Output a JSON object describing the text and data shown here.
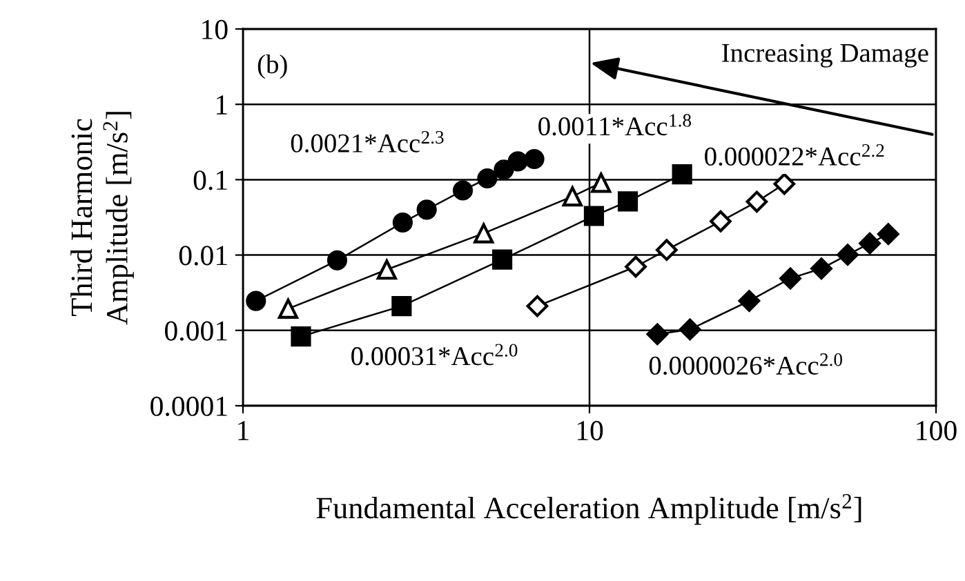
{
  "chart_data": {
    "type": "line",
    "xlabel": "Fundamental Acceleration Amplitude [m/s$^{2}$]",
    "ylabel": "Third Harmonic\nAmplitude [m/s$^{2}$]",
    "log": "xy",
    "xlim": [
      1,
      100
    ],
    "ylim": [
      0.0001,
      10
    ],
    "xticks": [
      1,
      10,
      100
    ],
    "yticks": [
      0.0001,
      0.001,
      0.01,
      0.1,
      1,
      10
    ],
    "grid": true,
    "line_style": "solid",
    "annotations": [
      "(b)",
      "Increasing Damage",
      "0.0021*Acc$^{2.3}$",
      "0.0011*Acc$^{1.8}$",
      "0.000022*Acc$^{2.2}$",
      "0.00031*Acc$^{2.0}$",
      "0.0000026*Acc$^{2.0}$"
    ],
    "series": [
      {
        "color": "#000000",
        "marker": "circle",
        "x": [
          1.09,
          1.87,
          2.89,
          3.39,
          4.31,
          5.07,
          5.66,
          6.21,
          6.93
        ],
        "values": [
          0.00246,
          0.0085,
          0.027,
          0.04,
          0.072,
          0.104,
          0.136,
          0.175,
          0.188
        ]
      },
      {
        "color": "#ffffff",
        "marker": "triangle",
        "x": [
          1.35,
          2.6,
          4.95,
          8.93,
          10.8
        ],
        "values": [
          0.00194,
          0.0064,
          0.0194,
          0.06,
          0.091
        ]
      },
      {
        "color": "#000000",
        "marker": "square",
        "x": [
          1.47,
          2.87,
          5.6,
          10.3,
          12.9,
          18.5
        ],
        "values": [
          0.00083,
          0.0021,
          0.0087,
          0.033,
          0.0515,
          0.118
        ]
      },
      {
        "color": "#ffffff",
        "marker": "diamond",
        "x": [
          7.07,
          13.6,
          16.7,
          23.9,
          30.4,
          36.5
        ],
        "values": [
          0.0021,
          0.007,
          0.0117,
          0.028,
          0.051,
          0.088
        ]
      },
      {
        "color": "#000000",
        "marker": "diamond",
        "x": [
          15.7,
          19.5,
          28.9,
          38.0,
          46.7,
          55.6,
          64.4,
          72.8
        ],
        "values": [
          0.00089,
          0.00103,
          0.00246,
          0.0049,
          0.0066,
          0.0101,
          0.0143,
          0.019
        ]
      }
    ]
  }
}
